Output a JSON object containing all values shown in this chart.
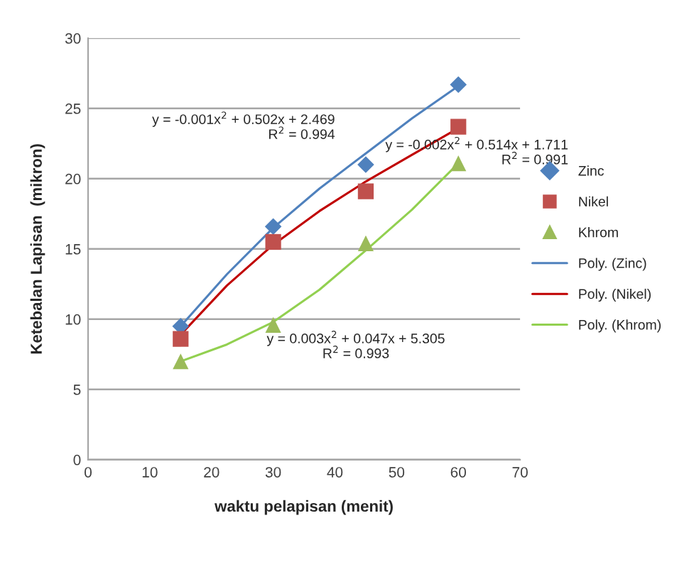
{
  "chart_data": {
    "type": "scatter",
    "xlabel": "waktu pelapisan (menit)",
    "ylabel": "Ketebalan Lapisan  (mikron)",
    "xlim": [
      0,
      70
    ],
    "xticks": [
      0,
      10,
      20,
      30,
      40,
      50,
      60,
      70
    ],
    "ylim": [
      0,
      30
    ],
    "yticks": [
      0,
      5,
      10,
      15,
      20,
      25,
      30
    ],
    "grid": "y",
    "legend": "right",
    "series": [
      {
        "name": "Zinc",
        "marker": "diamond",
        "color": "#4f81bd",
        "x": [
          15,
          30,
          45,
          60
        ],
        "values": [
          9.5,
          16.6,
          21.0,
          26.7
        ]
      },
      {
        "name": "Nikel",
        "marker": "square",
        "color": "#c0504d",
        "x": [
          15,
          30,
          45,
          60
        ],
        "values": [
          8.6,
          15.5,
          19.1,
          23.7
        ]
      },
      {
        "name": "Khrom",
        "marker": "triangle",
        "color": "#9bbb59",
        "x": [
          15,
          30,
          45,
          60
        ],
        "values": [
          7.0,
          9.6,
          15.4,
          21.1
        ]
      },
      {
        "name": "Poly. (Zinc)",
        "type": "line",
        "marker": "none",
        "color": "#4f81bd",
        "x": [
          15,
          22.5,
          30,
          37.5,
          45,
          52.5,
          60
        ],
        "values": [
          9.5,
          13.2,
          16.5,
          19.3,
          21.8,
          24.3,
          26.6
        ]
      },
      {
        "name": "Poly. (Nikel)",
        "type": "line",
        "marker": "none",
        "color": "#c00000",
        "x": [
          15,
          22.5,
          30,
          37.5,
          45,
          52.5,
          60
        ],
        "values": [
          8.9,
          12.4,
          15.3,
          17.7,
          19.8,
          21.7,
          23.6
        ]
      },
      {
        "name": "Poly. (Khrom)",
        "type": "line",
        "marker": "none",
        "color": "#92d050",
        "x": [
          15,
          22.5,
          30,
          37.5,
          45,
          52.5,
          60
        ],
        "values": [
          7.0,
          8.2,
          9.8,
          12.1,
          14.9,
          17.8,
          21.1
        ]
      }
    ],
    "annotations": [
      "y = -0.001x$^{2}$ + 0.502x + 2.469\nR$^{2}$ = 0.994",
      "y = -0.002x$^{2}$ + 0.514x + 1.711\nR$^{2}$ = 0.991",
      "y = 0.003x$^{2}$ + 0.047x + 5.305\nR$^{2}$ = 0.993"
    ]
  }
}
